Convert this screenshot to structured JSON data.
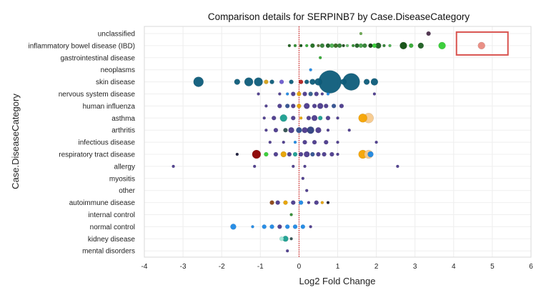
{
  "chart_data": {
    "type": "scatter",
    "title": "Comparison details for SERPINB7 by Case.DiseaseCategory",
    "xlabel": "Log2 Fold Change",
    "ylabel": "Case.DiseaseCategory",
    "xlim": [
      -4,
      6
    ],
    "xticks": [
      "-4",
      "-3",
      "-2",
      "-1",
      "0",
      "1",
      "2",
      "3",
      "4",
      "5",
      "6"
    ],
    "grid": true,
    "reference_line": {
      "x": 0,
      "color": "#cc0000",
      "style": "dotted"
    },
    "categories": [
      "unclassified",
      "inflammatory bowel disease (IBD)",
      "gastrointestinal disease",
      "neoplasms",
      "skin disease",
      "nervous system disease",
      "human influenza",
      "asthma",
      "arthritis",
      "infectious disease",
      "respiratory tract disease",
      "allergy",
      "myositis",
      "other",
      "autoimmune disease",
      "internal control",
      "normal control",
      "kidney disease",
      "mental disorders"
    ],
    "highlight": {
      "category": "inflammatory bowel disease (IBD)",
      "x": 4.72,
      "color": "#d9534f"
    },
    "points": [
      {
        "cat": 0,
        "x": 3.35,
        "r": 3,
        "color": "#4a2d4a"
      },
      {
        "cat": 0,
        "x": 1.6,
        "r": 2,
        "color": "#6aa84f"
      },
      {
        "cat": 1,
        "x": -0.25,
        "r": 2,
        "color": "#1f5f1f"
      },
      {
        "cat": 1,
        "x": -0.1,
        "r": 2,
        "color": "#2e8b2e"
      },
      {
        "cat": 1,
        "x": 0.05,
        "r": 2,
        "color": "#0f4d0f"
      },
      {
        "cat": 1,
        "x": 0.2,
        "r": 2,
        "color": "#33aa33"
      },
      {
        "cat": 1,
        "x": 0.35,
        "r": 3,
        "color": "#1e6b1e"
      },
      {
        "cat": 1,
        "x": 0.5,
        "r": 2,
        "color": "#556b2f"
      },
      {
        "cat": 1,
        "x": 0.6,
        "r": 3,
        "color": "#2e7d32"
      },
      {
        "cat": 1,
        "x": 0.75,
        "r": 3,
        "color": "#1b5e20"
      },
      {
        "cat": 1,
        "x": 0.85,
        "r": 3,
        "color": "#4caf50"
      },
      {
        "cat": 1,
        "x": 0.95,
        "r": 3,
        "color": "#33691e"
      },
      {
        "cat": 1,
        "x": 1.05,
        "r": 3,
        "color": "#2e7d32"
      },
      {
        "cat": 1,
        "x": 1.15,
        "r": 2,
        "color": "#1e4d1e"
      },
      {
        "cat": 1,
        "x": 1.25,
        "r": 2,
        "color": "#66bb6a"
      },
      {
        "cat": 1,
        "x": 1.4,
        "r": 2,
        "color": "#2e8b2e"
      },
      {
        "cat": 1,
        "x": 1.5,
        "r": 3,
        "color": "#1b5e20"
      },
      {
        "cat": 1,
        "x": 1.6,
        "r": 3,
        "color": "#43a047"
      },
      {
        "cat": 1,
        "x": 1.7,
        "r": 3,
        "color": "#2e7d32"
      },
      {
        "cat": 1,
        "x": 1.85,
        "r": 3,
        "color": "#0d3d0d"
      },
      {
        "cat": 1,
        "x": 1.95,
        "r": 3,
        "color": "#33cc33"
      },
      {
        "cat": 1,
        "x": 2.05,
        "r": 4,
        "color": "#1b5e20"
      },
      {
        "cat": 1,
        "x": 2.2,
        "r": 2,
        "color": "#2e7d32"
      },
      {
        "cat": 1,
        "x": 2.35,
        "r": 2,
        "color": "#4caf50"
      },
      {
        "cat": 1,
        "x": 2.7,
        "r": 5,
        "color": "#0f4d0f"
      },
      {
        "cat": 1,
        "x": 2.9,
        "r": 3,
        "color": "#33aa33"
      },
      {
        "cat": 1,
        "x": 3.15,
        "r": 4,
        "color": "#1b5e20"
      },
      {
        "cat": 1,
        "x": 3.7,
        "r": 5,
        "color": "#33cc33"
      },
      {
        "cat": 1,
        "x": 4.72,
        "r": 5,
        "color": "#e88a80"
      },
      {
        "cat": 2,
        "x": 0.55,
        "r": 2,
        "color": "#33aa33"
      },
      {
        "cat": 3,
        "x": 0.3,
        "r": 2,
        "color": "#1e88e5"
      },
      {
        "cat": 4,
        "x": -2.6,
        "r": 7,
        "color": "#0d5c7a"
      },
      {
        "cat": 4,
        "x": -1.6,
        "r": 4,
        "color": "#0d5c7a"
      },
      {
        "cat": 4,
        "x": -1.3,
        "r": 6,
        "color": "#0d5c7a"
      },
      {
        "cat": 4,
        "x": -1.05,
        "r": 6,
        "color": "#0d5c7a"
      },
      {
        "cat": 4,
        "x": -0.85,
        "r": 3,
        "color": "#d4a017"
      },
      {
        "cat": 4,
        "x": -0.7,
        "r": 3,
        "color": "#0d5c7a"
      },
      {
        "cat": 4,
        "x": -0.45,
        "r": 3,
        "color": "#6a5acd"
      },
      {
        "cat": 4,
        "x": -0.2,
        "r": 3,
        "color": "#0d5c7a"
      },
      {
        "cat": 4,
        "x": 0.05,
        "r": 3,
        "color": "#b22222"
      },
      {
        "cat": 4,
        "x": 0.2,
        "r": 3,
        "color": "#0d5c7a"
      },
      {
        "cat": 4,
        "x": 0.35,
        "r": 4,
        "color": "#0d5c7a"
      },
      {
        "cat": 4,
        "x": 0.5,
        "r": 5,
        "color": "#0d5c7a"
      },
      {
        "cat": 4,
        "x": 0.8,
        "r": 16,
        "color": "#0d5c7a"
      },
      {
        "cat": 4,
        "x": 1.15,
        "r": 4,
        "color": "#0d5c7a"
      },
      {
        "cat": 4,
        "x": 1.35,
        "r": 12,
        "color": "#0d5c7a"
      },
      {
        "cat": 4,
        "x": 1.75,
        "r": 4,
        "color": "#0d5c7a"
      },
      {
        "cat": 4,
        "x": 1.95,
        "r": 5,
        "color": "#0d5c7a"
      },
      {
        "cat": 5,
        "x": -1.05,
        "r": 2,
        "color": "#4b3a8c"
      },
      {
        "cat": 5,
        "x": -0.5,
        "r": 2,
        "color": "#4b3a8c"
      },
      {
        "cat": 5,
        "x": -0.3,
        "r": 2,
        "color": "#1e88e5"
      },
      {
        "cat": 5,
        "x": -0.15,
        "r": 3,
        "color": "#4b3a8c"
      },
      {
        "cat": 5,
        "x": 0.0,
        "r": 3,
        "color": "#e6a100"
      },
      {
        "cat": 5,
        "x": 0.15,
        "r": 3,
        "color": "#4b3a8c"
      },
      {
        "cat": 5,
        "x": 0.3,
        "r": 3,
        "color": "#2e5c8a"
      },
      {
        "cat": 5,
        "x": 0.45,
        "r": 3,
        "color": "#4b3a8c"
      },
      {
        "cat": 5,
        "x": 0.6,
        "r": 2,
        "color": "#4b3a8c"
      },
      {
        "cat": 5,
        "x": 0.75,
        "r": 2,
        "color": "#1e88e5"
      },
      {
        "cat": 5,
        "x": 1.95,
        "r": 2,
        "color": "#4b3a8c"
      },
      {
        "cat": 6,
        "x": -0.85,
        "r": 2,
        "color": "#4b3a8c"
      },
      {
        "cat": 6,
        "x": -0.5,
        "r": 3,
        "color": "#4b3a8c"
      },
      {
        "cat": 6,
        "x": -0.3,
        "r": 3,
        "color": "#2f4f8f"
      },
      {
        "cat": 6,
        "x": -0.15,
        "r": 3,
        "color": "#4b3a8c"
      },
      {
        "cat": 6,
        "x": 0.0,
        "r": 3,
        "color": "#e6a100"
      },
      {
        "cat": 6,
        "x": 0.2,
        "r": 4,
        "color": "#4b3a8c"
      },
      {
        "cat": 6,
        "x": 0.4,
        "r": 3,
        "color": "#4b3a8c"
      },
      {
        "cat": 6,
        "x": 0.55,
        "r": 4,
        "color": "#4b3a8c"
      },
      {
        "cat": 6,
        "x": 0.7,
        "r": 3,
        "color": "#4b3a8c"
      },
      {
        "cat": 6,
        "x": 0.9,
        "r": 3,
        "color": "#2f4f8f"
      },
      {
        "cat": 6,
        "x": 1.1,
        "r": 3,
        "color": "#4b3a8c"
      },
      {
        "cat": 7,
        "x": -0.9,
        "r": 2,
        "color": "#4b3a8c"
      },
      {
        "cat": 7,
        "x": -0.65,
        "r": 3,
        "color": "#4b3a8c"
      },
      {
        "cat": 7,
        "x": -0.4,
        "r": 5,
        "color": "#1a9e8f"
      },
      {
        "cat": 7,
        "x": -0.15,
        "r": 3,
        "color": "#4b3a8c"
      },
      {
        "cat": 7,
        "x": 0.05,
        "r": 2,
        "color": "#e6a100"
      },
      {
        "cat": 7,
        "x": 0.25,
        "r": 3,
        "color": "#4b3a8c"
      },
      {
        "cat": 7,
        "x": 0.4,
        "r": 4,
        "color": "#4b3a8c"
      },
      {
        "cat": 7,
        "x": 0.55,
        "r": 3,
        "color": "#1a9e8f"
      },
      {
        "cat": 7,
        "x": 0.75,
        "r": 3,
        "color": "#4b3a8c"
      },
      {
        "cat": 7,
        "x": 1.0,
        "r": 2,
        "color": "#4b3a8c"
      },
      {
        "cat": 7,
        "x": 1.65,
        "r": 6,
        "color": "#f5a300"
      },
      {
        "cat": 7,
        "x": 1.8,
        "r": 7,
        "color": "#f7c98c"
      },
      {
        "cat": 8,
        "x": -0.85,
        "r": 2,
        "color": "#4b3a8c"
      },
      {
        "cat": 8,
        "x": -0.6,
        "r": 3,
        "color": "#4b3a8c"
      },
      {
        "cat": 8,
        "x": -0.35,
        "r": 3,
        "color": "#2f4f4f"
      },
      {
        "cat": 8,
        "x": -0.2,
        "r": 4,
        "color": "#4b3a8c"
      },
      {
        "cat": 8,
        "x": 0.0,
        "r": 4,
        "color": "#2f4f8f"
      },
      {
        "cat": 8,
        "x": 0.15,
        "r": 4,
        "color": "#4b3a8c"
      },
      {
        "cat": 8,
        "x": 0.3,
        "r": 5,
        "color": "#2f3f7f"
      },
      {
        "cat": 8,
        "x": 0.5,
        "r": 4,
        "color": "#4b3a8c"
      },
      {
        "cat": 8,
        "x": 0.75,
        "r": 2,
        "color": "#4b3a8c"
      },
      {
        "cat": 8,
        "x": 1.3,
        "r": 2,
        "color": "#4b3a8c"
      },
      {
        "cat": 9,
        "x": -0.75,
        "r": 2,
        "color": "#4b3a8c"
      },
      {
        "cat": 9,
        "x": -0.4,
        "r": 2,
        "color": "#4b3a8c"
      },
      {
        "cat": 9,
        "x": -0.1,
        "r": 2,
        "color": "#1e88e5"
      },
      {
        "cat": 9,
        "x": 0.15,
        "r": 3,
        "color": "#4b3a8c"
      },
      {
        "cat": 9,
        "x": 0.4,
        "r": 3,
        "color": "#4b3a8c"
      },
      {
        "cat": 9,
        "x": 0.7,
        "r": 3,
        "color": "#4b3a8c"
      },
      {
        "cat": 9,
        "x": 1.0,
        "r": 2,
        "color": "#4b3a8c"
      },
      {
        "cat": 9,
        "x": 2.0,
        "r": 2,
        "color": "#4b3a8c"
      },
      {
        "cat": 10,
        "x": -1.6,
        "r": 2,
        "color": "#1a1a3a"
      },
      {
        "cat": 10,
        "x": -1.1,
        "r": 6,
        "color": "#8b0000"
      },
      {
        "cat": 10,
        "x": -0.85,
        "r": 3,
        "color": "#33cc33"
      },
      {
        "cat": 10,
        "x": -0.6,
        "r": 3,
        "color": "#4b3a8c"
      },
      {
        "cat": 10,
        "x": -0.4,
        "r": 4,
        "color": "#e6a100"
      },
      {
        "cat": 10,
        "x": -0.25,
        "r": 3,
        "color": "#4b3a8c"
      },
      {
        "cat": 10,
        "x": -0.1,
        "r": 3,
        "color": "#1a9e8f"
      },
      {
        "cat": 10,
        "x": 0.05,
        "r": 3,
        "color": "#4b3a8c"
      },
      {
        "cat": 10,
        "x": 0.2,
        "r": 4,
        "color": "#4b3a8c"
      },
      {
        "cat": 10,
        "x": 0.35,
        "r": 3,
        "color": "#2f4f8f"
      },
      {
        "cat": 10,
        "x": 0.5,
        "r": 3,
        "color": "#4b3a8c"
      },
      {
        "cat": 10,
        "x": 0.65,
        "r": 3,
        "color": "#4b3a8c"
      },
      {
        "cat": 10,
        "x": 0.85,
        "r": 3,
        "color": "#4b3a8c"
      },
      {
        "cat": 10,
        "x": 1.0,
        "r": 2,
        "color": "#4b3a8c"
      },
      {
        "cat": 10,
        "x": 1.65,
        "r": 6,
        "color": "#f5a300"
      },
      {
        "cat": 10,
        "x": 1.8,
        "r": 6,
        "color": "#f7c98c"
      },
      {
        "cat": 10,
        "x": 1.85,
        "r": 4,
        "color": "#1e88e5"
      },
      {
        "cat": 11,
        "x": -3.25,
        "r": 2,
        "color": "#4b3a8c"
      },
      {
        "cat": 11,
        "x": -1.15,
        "r": 2,
        "color": "#4b3a8c"
      },
      {
        "cat": 11,
        "x": -0.15,
        "r": 2,
        "color": "#4b3a8c"
      },
      {
        "cat": 11,
        "x": 0.15,
        "r": 2,
        "color": "#4b3a8c"
      },
      {
        "cat": 11,
        "x": 2.55,
        "r": 2,
        "color": "#4b3a8c"
      },
      {
        "cat": 12,
        "x": 0.1,
        "r": 2,
        "color": "#4b3a8c"
      },
      {
        "cat": 13,
        "x": 0.2,
        "r": 2,
        "color": "#4b3a8c"
      },
      {
        "cat": 14,
        "x": -0.7,
        "r": 3,
        "color": "#8b4513"
      },
      {
        "cat": 14,
        "x": -0.55,
        "r": 3,
        "color": "#4b3a8c"
      },
      {
        "cat": 14,
        "x": -0.35,
        "r": 3,
        "color": "#e6a100"
      },
      {
        "cat": 14,
        "x": -0.15,
        "r": 3,
        "color": "#4b3a8c"
      },
      {
        "cat": 14,
        "x": 0.05,
        "r": 3,
        "color": "#1e88e5"
      },
      {
        "cat": 14,
        "x": 0.25,
        "r": 2,
        "color": "#4b3a8c"
      },
      {
        "cat": 14,
        "x": 0.45,
        "r": 3,
        "color": "#4b3a8c"
      },
      {
        "cat": 14,
        "x": 0.6,
        "r": 2,
        "color": "#e6a100"
      },
      {
        "cat": 14,
        "x": 0.75,
        "r": 2,
        "color": "#1a1a3a"
      },
      {
        "cat": 15,
        "x": -0.2,
        "r": 2,
        "color": "#2e8b2e"
      },
      {
        "cat": 16,
        "x": -1.7,
        "r": 4,
        "color": "#1e88e5"
      },
      {
        "cat": 16,
        "x": -1.2,
        "r": 2,
        "color": "#1e88e5"
      },
      {
        "cat": 16,
        "x": -0.9,
        "r": 3,
        "color": "#1e88e5"
      },
      {
        "cat": 16,
        "x": -0.7,
        "r": 3,
        "color": "#1e88e5"
      },
      {
        "cat": 16,
        "x": -0.5,
        "r": 3,
        "color": "#4b3a8c"
      },
      {
        "cat": 16,
        "x": -0.3,
        "r": 3,
        "color": "#1e88e5"
      },
      {
        "cat": 16,
        "x": -0.1,
        "r": 3,
        "color": "#1e88e5"
      },
      {
        "cat": 16,
        "x": 0.1,
        "r": 3,
        "color": "#1e88e5"
      },
      {
        "cat": 16,
        "x": 0.3,
        "r": 2,
        "color": "#4b3a8c"
      },
      {
        "cat": 17,
        "x": -0.45,
        "r": 3,
        "color": "#9fe8d8"
      },
      {
        "cat": 17,
        "x": -0.35,
        "r": 4,
        "color": "#1a9e8f"
      },
      {
        "cat": 17,
        "x": -0.2,
        "r": 2,
        "color": "#2f4f4f"
      },
      {
        "cat": 18,
        "x": -0.3,
        "r": 2,
        "color": "#4b3a8c"
      }
    ]
  }
}
